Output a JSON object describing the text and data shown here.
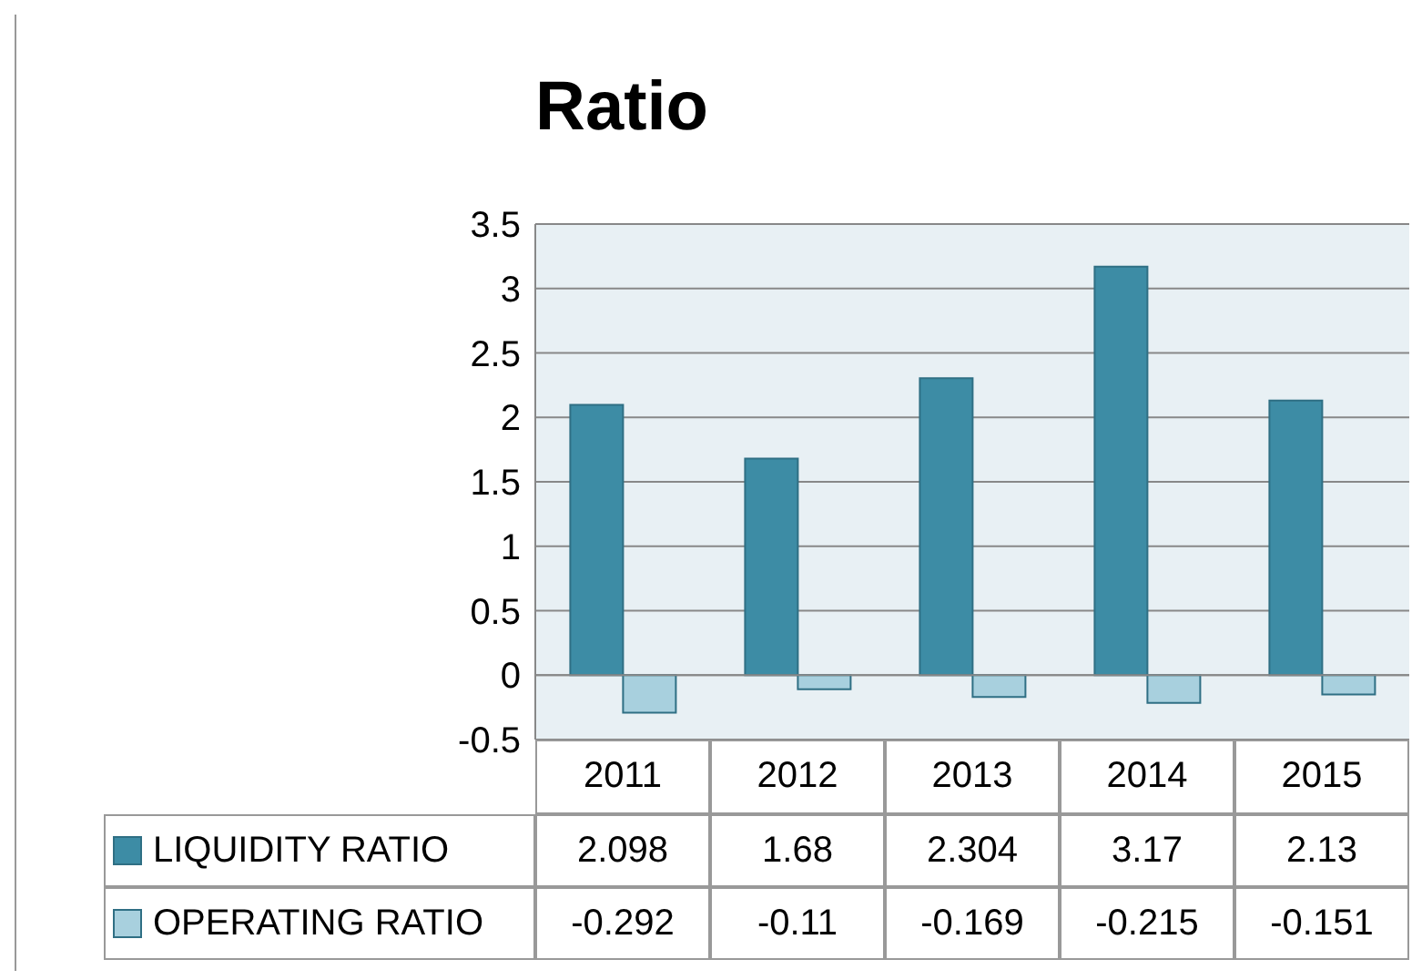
{
  "chart_data": {
    "type": "bar",
    "title": "Ratio",
    "categories": [
      "2011",
      "2012",
      "2013",
      "2014",
      "2015"
    ],
    "series": [
      {
        "name": "LIQUIDITY RATIO",
        "color": "#3d8ca5",
        "values": [
          2.098,
          1.68,
          2.304,
          3.17,
          2.13
        ]
      },
      {
        "name": "OPERATING RATIO",
        "color": "#a8d0de",
        "values": [
          -0.292,
          -0.11,
          -0.169,
          -0.215,
          -0.151
        ]
      }
    ],
    "ylim": [
      -0.5,
      3.5
    ],
    "yticks": [
      -0.5,
      0,
      0.5,
      1,
      1.5,
      2,
      2.5,
      3,
      3.5
    ],
    "grid": "y",
    "legend": "bottom left",
    "data_labels": true
  }
}
